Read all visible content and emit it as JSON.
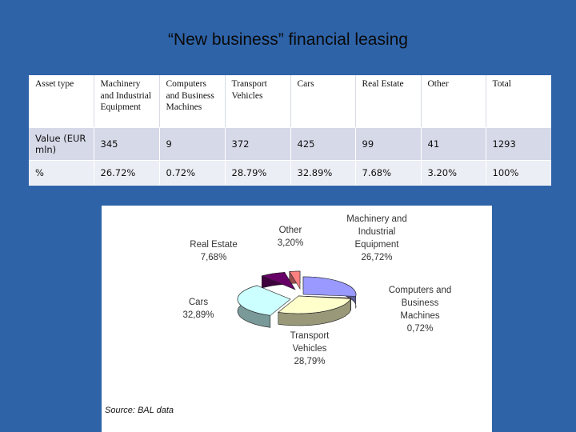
{
  "title": "“New business” financial leasing",
  "table": {
    "headers": [
      "Asset type",
      "Machinery and Industrial Equipment",
      "Computers and Business Machines",
      "Transport Vehicles",
      "Cars",
      "Real Estate",
      "Other",
      "Total"
    ],
    "value_row": [
      "Value (EUR mln)",
      "345",
      "9",
      "372",
      "425",
      "99",
      "41",
      "1293"
    ],
    "pct_row": [
      "%",
      "26.72%",
      "0.72%",
      "28.79%",
      "32.89%",
      "7.68%",
      "3.20%",
      "100%"
    ]
  },
  "chart_data": {
    "type": "pie",
    "title": "",
    "slices": [
      {
        "label": "Machinery and Industrial Equipment",
        "value": 26.72,
        "display": "26,72%",
        "color": "#9999ff"
      },
      {
        "label": "Computers and Business Machines",
        "value": 0.72,
        "display": "0,72%",
        "color": "#993366"
      },
      {
        "label": "Transport Vehicles",
        "value": 28.79,
        "display": "28,79%",
        "color": "#ffffcc"
      },
      {
        "label": "Cars",
        "value": 32.89,
        "display": "32,89%",
        "color": "#ccffff"
      },
      {
        "label": "Real Estate",
        "value": 7.68,
        "display": "7,68%",
        "color": "#660066"
      },
      {
        "label": "Other",
        "value": 3.2,
        "display": "3,20%",
        "color": "#ff8080"
      }
    ]
  },
  "source": "Source: BAL data"
}
